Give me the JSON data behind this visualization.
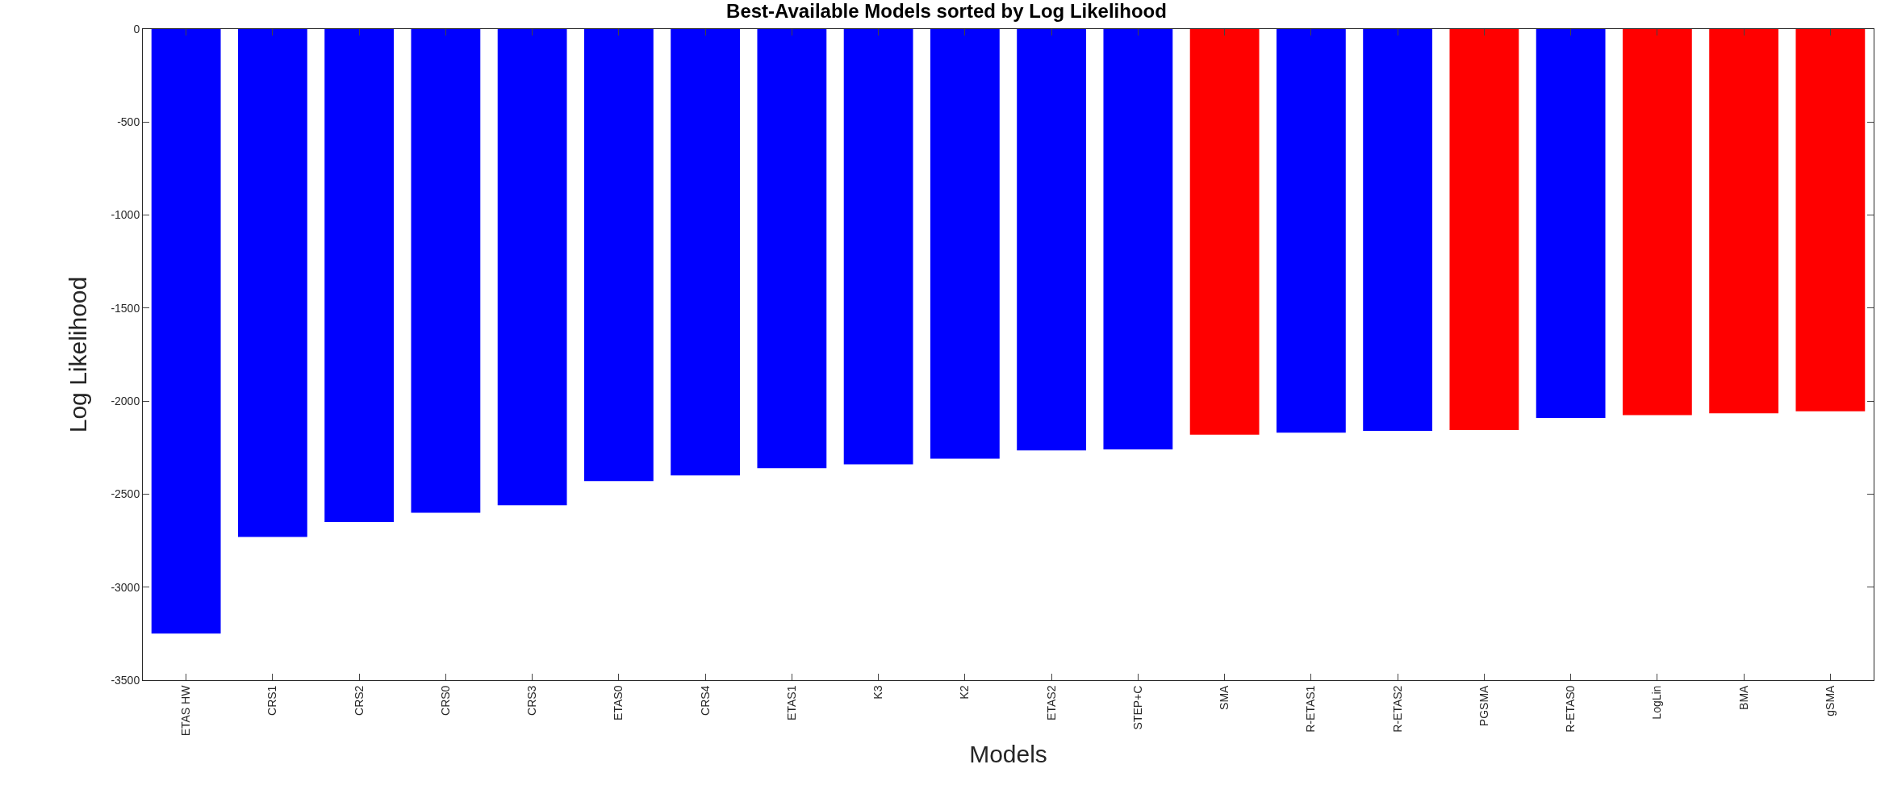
{
  "chart_data": {
    "type": "bar",
    "title": "Best-Available Models sorted by Log Likelihood",
    "xlabel": "Models",
    "ylabel": "Log Likelihood",
    "categories": [
      "ETAS HW",
      "CRS1",
      "CRS2",
      "CRS0",
      "CRS3",
      "ETAS0",
      "CRS4",
      "ETAS1",
      "K3",
      "K2",
      "ETAS2",
      "STEP+C",
      "SMA",
      "R-ETAS1",
      "R-ETAS2",
      "PGSMA",
      "R-ETAS0",
      "LogLin",
      "BMA",
      "gSMA"
    ],
    "values": [
      -3250,
      -2730,
      -2650,
      -2600,
      -2560,
      -2430,
      -2400,
      -2360,
      -2340,
      -2310,
      -2265,
      -2260,
      -2180,
      -2170,
      -2160,
      -2155,
      -2090,
      -2075,
      -2065,
      -2055
    ],
    "colors": [
      "#0000ff",
      "#0000ff",
      "#0000ff",
      "#0000ff",
      "#0000ff",
      "#0000ff",
      "#0000ff",
      "#0000ff",
      "#0000ff",
      "#0000ff",
      "#0000ff",
      "#0000ff",
      "#ff0000",
      "#0000ff",
      "#0000ff",
      "#ff0000",
      "#0000ff",
      "#ff0000",
      "#ff0000",
      "#ff0000"
    ],
    "ylim": [
      -3500,
      0
    ],
    "yticks": [
      -3500,
      -3000,
      -2500,
      -2000,
      -1500,
      -1000,
      -500,
      0
    ]
  }
}
